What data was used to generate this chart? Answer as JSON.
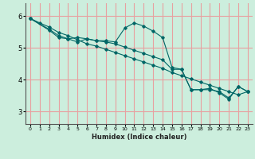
{
  "xlabel": "Humidex (Indice chaleur)",
  "bg_color": "#cceedd",
  "grid_color": "#e8a0a0",
  "line_color": "#006666",
  "xlim": [
    -0.5,
    23.5
  ],
  "ylim": [
    2.6,
    6.4
  ],
  "yticks": [
    3,
    4,
    5,
    6
  ],
  "xticks": [
    0,
    1,
    2,
    3,
    4,
    5,
    6,
    7,
    8,
    9,
    10,
    11,
    12,
    13,
    14,
    15,
    16,
    17,
    18,
    19,
    20,
    21,
    22,
    23
  ],
  "line1_x": [
    0,
    1,
    2,
    3,
    4,
    5,
    6,
    7,
    8,
    9,
    10,
    11,
    12,
    13,
    14,
    15,
    16,
    17,
    18,
    19,
    20,
    21,
    22,
    23
  ],
  "line1_y": [
    5.92,
    5.78,
    5.65,
    5.48,
    5.38,
    5.25,
    5.12,
    5.05,
    4.95,
    4.85,
    4.75,
    4.65,
    4.55,
    4.45,
    4.35,
    4.22,
    4.12,
    4.02,
    3.92,
    3.82,
    3.72,
    3.62,
    3.52,
    3.62
  ],
  "line2_x": [
    0,
    2,
    3,
    4,
    5,
    6,
    7,
    8,
    9,
    10,
    11,
    12,
    13,
    14,
    15,
    16,
    17,
    18,
    19,
    20,
    21,
    22,
    23
  ],
  "line2_y": [
    5.92,
    5.58,
    5.38,
    5.28,
    5.18,
    5.28,
    5.22,
    5.22,
    5.18,
    5.62,
    5.78,
    5.68,
    5.52,
    5.32,
    4.38,
    4.32,
    3.68,
    3.68,
    3.72,
    3.58,
    3.38,
    3.78,
    3.62
  ],
  "line3_x": [
    0,
    2,
    3,
    4,
    5,
    6,
    7,
    8,
    9,
    10,
    11,
    12,
    13,
    14,
    15,
    16,
    17,
    18,
    19,
    20,
    21,
    22,
    23
  ],
  "line3_y": [
    5.92,
    5.55,
    5.32,
    5.28,
    5.32,
    5.28,
    5.22,
    5.18,
    5.12,
    5.02,
    4.92,
    4.82,
    4.72,
    4.62,
    4.32,
    4.32,
    3.68,
    3.68,
    3.68,
    3.62,
    3.42,
    3.78,
    3.62
  ]
}
